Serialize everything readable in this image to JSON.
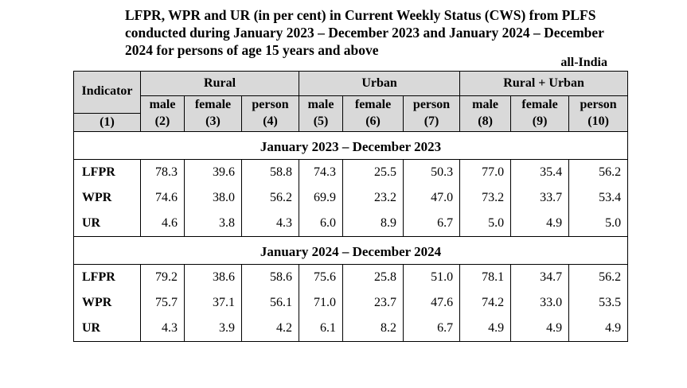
{
  "title": {
    "line1": "LFPR, WPR and UR (in per cent) in Current Weekly Status (CWS) from PLFS",
    "line2": "conducted during January 2023 – December 2023 and January 2024 – December",
    "line3": "2024 for persons of age 15 years and above"
  },
  "region_label": "all-India",
  "table": {
    "indicator_header": "Indicator",
    "groups": [
      "Rural",
      "Urban",
      "Rural + Urban"
    ],
    "sub_headers": [
      "male",
      "female",
      "person",
      "male",
      "female",
      "person",
      "male",
      "female",
      "person"
    ],
    "col_numbers": [
      "(1)",
      "(2)",
      "(3)",
      "(4)",
      "(5)",
      "(6)",
      "(7)",
      "(8)",
      "(9)",
      "(10)"
    ],
    "periods": [
      {
        "label": "January 2023 – December 2023",
        "rows": [
          {
            "indicator": "LFPR",
            "values": [
              "78.3",
              "39.6",
              "58.8",
              "74.3",
              "25.5",
              "50.3",
              "77.0",
              "35.4",
              "56.2"
            ]
          },
          {
            "indicator": "WPR",
            "values": [
              "74.6",
              "38.0",
              "56.2",
              "69.9",
              "23.2",
              "47.0",
              "73.2",
              "33.7",
              "53.4"
            ]
          },
          {
            "indicator": "UR",
            "values": [
              "4.6",
              "3.8",
              "4.3",
              "6.0",
              "8.9",
              "6.7",
              "5.0",
              "4.9",
              "5.0"
            ]
          }
        ]
      },
      {
        "label": "January 2024 – December 2024",
        "rows": [
          {
            "indicator": "LFPR",
            "values": [
              "79.2",
              "38.6",
              "58.6",
              "75.6",
              "25.8",
              "51.0",
              "78.1",
              "34.7",
              "56.2"
            ]
          },
          {
            "indicator": "WPR",
            "values": [
              "75.7",
              "37.1",
              "56.1",
              "71.0",
              "23.7",
              "47.6",
              "74.2",
              "33.0",
              "53.5"
            ]
          },
          {
            "indicator": "UR",
            "values": [
              "4.3",
              "3.9",
              "4.2",
              "6.1",
              "8.2",
              "6.7",
              "4.9",
              "4.9",
              "4.9"
            ]
          }
        ]
      }
    ]
  }
}
